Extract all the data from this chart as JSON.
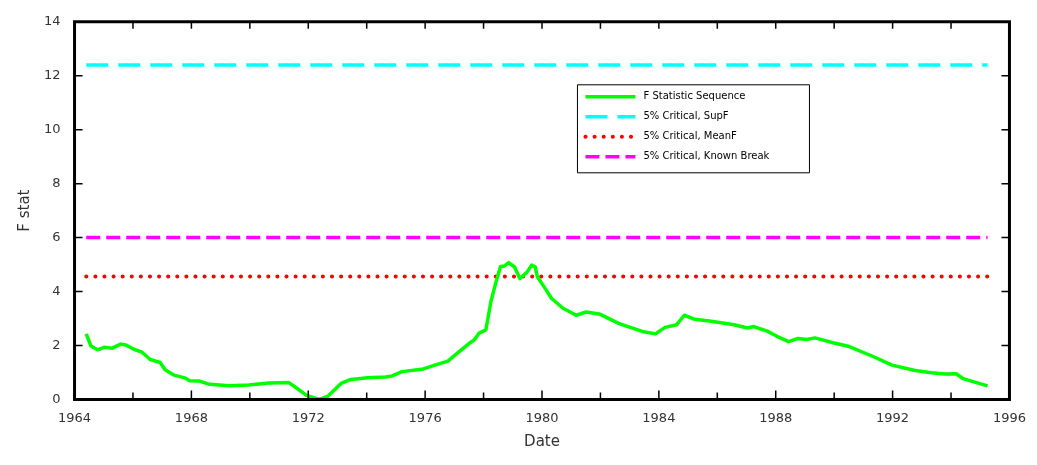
{
  "chart_data": {
    "type": "line",
    "xlabel": "Date",
    "ylabel": "F stat",
    "xlim": [
      1964,
      1996
    ],
    "xticks": [
      1964,
      {
        "value": 1966,
        "label": null
      },
      1968,
      {
        "value": 1970,
        "label": null
      },
      1972,
      {
        "value": 1974,
        "label": null
      },
      1976,
      {
        "value": 1978,
        "label": null
      },
      1980,
      {
        "value": 1982,
        "label": null
      },
      1984,
      {
        "value": 1986,
        "label": null
      },
      1988,
      {
        "value": 1990,
        "label": null
      },
      1992,
      {
        "value": 1994,
        "label": null
      },
      1996
    ],
    "ylim": [
      0,
      14
    ],
    "yticks": [
      0,
      2,
      4,
      6,
      8,
      10,
      12,
      14
    ],
    "grid": false,
    "legend": "top right",
    "series": [
      {
        "name": "F Statistic Sequence",
        "color": "#00ff00",
        "line_style": "solid",
        "x": [
          1964.4,
          1964.56,
          1964.79,
          1965.01,
          1965.29,
          1965.58,
          1965.75,
          1966.03,
          1966.31,
          1966.59,
          1966.93,
          1967.1,
          1967.38,
          1967.77,
          1967.94,
          1968.28,
          1968.62,
          1969.29,
          1969.97,
          1970.65,
          1971.32,
          1971.54,
          1971.94,
          1972.39,
          1972.67,
          1973.12,
          1973.46,
          1974.02,
          1974.64,
          1974.87,
          1975.21,
          1975.94,
          1976.44,
          1976.78,
          1977.01,
          1977.51,
          1977.68,
          1977.85,
          1978.08,
          1978.25,
          1978.42,
          1978.58,
          1978.72,
          1978.86,
          1979.06,
          1979.24,
          1979.48,
          1979.65,
          1979.77,
          1979.84,
          1980.05,
          1980.33,
          1980.72,
          1981.17,
          1981.51,
          1981.96,
          1982.64,
          1983.43,
          1983.88,
          1984.21,
          1984.61,
          1984.87,
          1985.23,
          1985.73,
          1986.58,
          1987.03,
          1987.25,
          1987.71,
          1988.04,
          1988.44,
          1988.77,
          1989.06,
          1989.34,
          1989.96,
          1990.52,
          1991.31,
          1991.98,
          1992.77,
          1993.33,
          1993.79,
          1994.18,
          1994.41,
          1995.25
        ],
        "values": [
          2.43,
          1.98,
          1.84,
          1.93,
          1.9,
          2.05,
          2.02,
          1.86,
          1.75,
          1.48,
          1.37,
          1.1,
          0.91,
          0.8,
          0.69,
          0.68,
          0.56,
          0.51,
          0.53,
          0.61,
          0.63,
          0.47,
          0.15,
          0.0,
          0.12,
          0.59,
          0.74,
          0.8,
          0.83,
          0.87,
          1.03,
          1.13,
          1.31,
          1.42,
          1.63,
          2.08,
          2.2,
          2.46,
          2.58,
          3.62,
          4.33,
          4.93,
          4.95,
          5.07,
          4.91,
          4.48,
          4.71,
          4.98,
          4.91,
          4.55,
          4.21,
          3.74,
          3.38,
          3.12,
          3.24,
          3.17,
          2.81,
          2.52,
          2.43,
          2.67,
          2.77,
          3.12,
          2.97,
          2.91,
          2.77,
          2.65,
          2.7,
          2.53,
          2.34,
          2.14,
          2.26,
          2.22,
          2.28,
          2.1,
          1.96,
          1.6,
          1.27,
          1.07,
          0.99,
          0.94,
          0.95,
          0.77,
          0.5
        ]
      },
      {
        "name": "5% Critical, SupF",
        "color": "#00ffff",
        "line_style": "dashed",
        "x": [
          1964.4,
          1995.25
        ],
        "values": [
          12.4,
          12.4
        ]
      },
      {
        "name": "5% Critical, MeanF",
        "color": "#ff0000",
        "line_style": "dotted",
        "x": [
          1964.4,
          1995.25
        ],
        "values": [
          4.56,
          4.56
        ]
      },
      {
        "name": "5% Critical, Known Break",
        "color": "#ff00ff",
        "line_style": "dashed",
        "x": [
          1964.4,
          1995.25
        ],
        "values": [
          6.0,
          6.0
        ]
      }
    ]
  }
}
